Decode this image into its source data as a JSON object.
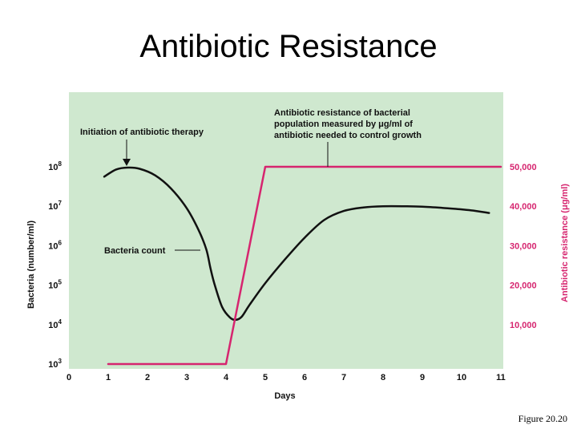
{
  "slide_title": "Antibiotic Resistance",
  "caption": "Figure 20.20",
  "colors": {
    "plot_background": "#cfe8cf",
    "bacteria_curve": "#111111",
    "resistance_curve": "#d6256f",
    "right_axis_text": "#d6256f"
  },
  "chart_data": {
    "type": "line",
    "title": "",
    "xlabel": "Days",
    "ylabel_left": "Bacteria (number/ml)",
    "ylabel_right": "Antibiotic resistance (μg/ml)",
    "xlim": [
      0,
      11
    ],
    "x_ticks": [
      "0",
      "1",
      "2",
      "3",
      "4",
      "5",
      "6",
      "7",
      "8",
      "9",
      "10",
      "11"
    ],
    "y_left_ticks": [
      {
        "base": "10",
        "exp": "3",
        "value": 3
      },
      {
        "base": "10",
        "exp": "4",
        "value": 4
      },
      {
        "base": "10",
        "exp": "5",
        "value": 5
      },
      {
        "base": "10",
        "exp": "6",
        "value": 6
      },
      {
        "base": "10",
        "exp": "7",
        "value": 7
      },
      {
        "base": "10",
        "exp": "8",
        "value": 8
      }
    ],
    "y_left_lim": [
      3,
      8
    ],
    "y_left_scale": "log",
    "y_right_ticks": [
      {
        "label": "10,000",
        "value": 10000
      },
      {
        "label": "20,000",
        "value": 20000
      },
      {
        "label": "30,000",
        "value": 30000
      },
      {
        "label": "40,000",
        "value": 40000
      },
      {
        "label": "50,000",
        "value": 50000
      }
    ],
    "y_right_lim": [
      0,
      50000
    ],
    "grid": false,
    "series": [
      {
        "name": "Bacteria count",
        "axis": "left",
        "x": [
          0.9,
          1.2,
          1.5,
          1.8,
          2.2,
          2.6,
          3.0,
          3.3,
          3.5,
          3.6,
          3.7,
          3.9,
          4.1,
          4.25,
          4.4,
          4.6,
          5.0,
          5.5,
          6.0,
          6.5,
          7.0,
          7.5,
          8.0,
          8.5,
          9.0,
          9.5,
          10.0,
          10.3,
          10.7
        ],
        "y": [
          7.75,
          7.93,
          7.98,
          7.95,
          7.78,
          7.45,
          6.95,
          6.4,
          5.9,
          5.45,
          5.05,
          4.45,
          4.18,
          4.12,
          4.2,
          4.5,
          5.05,
          5.65,
          6.2,
          6.65,
          6.88,
          6.97,
          7.0,
          7.0,
          6.99,
          6.96,
          6.92,
          6.89,
          6.83
        ]
      },
      {
        "name": "Antibiotic resistance",
        "axis": "right",
        "x": [
          1.0,
          4.0,
          5.0,
          11.0
        ],
        "y": [
          0,
          0,
          50000,
          50000
        ]
      }
    ],
    "annotations": [
      {
        "name": "therapy",
        "lines": [
          "Initiation of antibiotic therapy"
        ]
      },
      {
        "name": "resistance",
        "lines": [
          "Antibiotic resistance of bacterial",
          "population measured by μg/ml of",
          "antibiotic needed to control growth"
        ]
      },
      {
        "name": "count",
        "lines": [
          "Bacteria count"
        ]
      }
    ]
  }
}
